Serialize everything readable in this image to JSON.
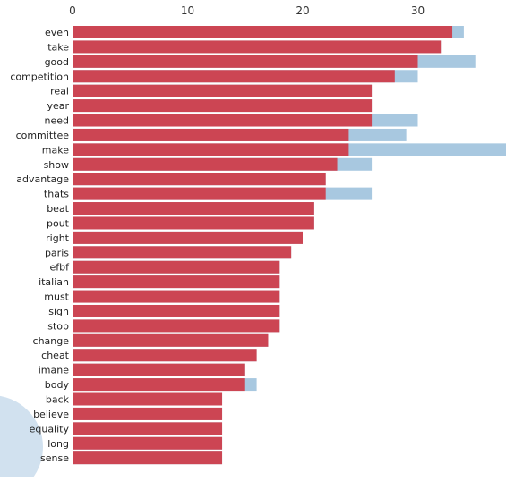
{
  "chart_data": {
    "type": "bar",
    "orientation": "horizontal",
    "stacked": "overlay",
    "xlim": [
      0,
      38
    ],
    "x_ticks": [
      0,
      10,
      20,
      30
    ],
    "x_axis_position": "top",
    "grid": false,
    "legend": "none",
    "categories": [
      "even",
      "take",
      "good",
      "competition",
      "real",
      "year",
      "need",
      "committee",
      "make",
      "show",
      "advantage",
      "thats",
      "beat",
      "pout",
      "right",
      "paris",
      "efbf",
      "italian",
      "must",
      "sign",
      "stop",
      "change",
      "cheat",
      "imane",
      "body",
      "back",
      "believe",
      "equality",
      "long",
      "sense"
    ],
    "series": [
      {
        "color": "#a8c8e0",
        "values": [
          34,
          32,
          35,
          30,
          26,
          26,
          30,
          29,
          38,
          26,
          22,
          26,
          21,
          21,
          20,
          19,
          18,
          18,
          18,
          18,
          18,
          17,
          16,
          15,
          16,
          13,
          13,
          13,
          13,
          13
        ]
      },
      {
        "color": "#cc4553",
        "values": [
          33,
          32,
          30,
          28,
          26,
          26,
          26,
          24,
          24,
          23,
          22,
          22,
          21,
          21,
          20,
          19,
          18,
          18,
          18,
          18,
          18,
          17,
          16,
          15,
          15,
          13,
          13,
          13,
          13,
          13
        ]
      }
    ]
  },
  "colors": {
    "decor_circle": "#c9dcec"
  }
}
